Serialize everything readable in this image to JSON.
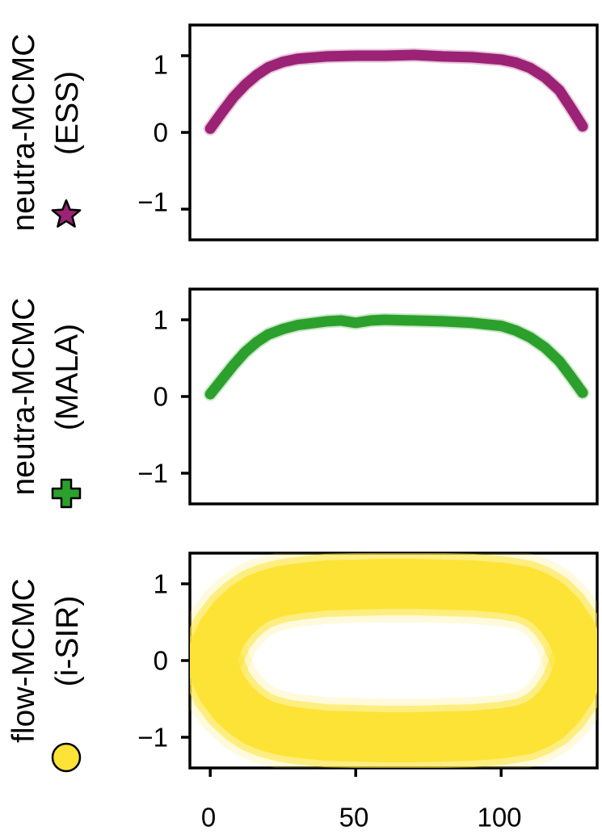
{
  "chart_data": [
    {
      "type": "line",
      "row_label_lines": [
        "neutra-MCMC",
        "(ESS)"
      ],
      "marker": "star",
      "color": "#9b2274",
      "x": [
        0,
        4,
        8,
        12,
        16,
        20,
        25,
        30,
        40,
        50,
        60,
        70,
        80,
        90,
        100,
        105,
        110,
        115,
        120,
        124,
        128
      ],
      "y": [
        0.05,
        0.26,
        0.46,
        0.62,
        0.75,
        0.85,
        0.92,
        0.96,
        0.99,
        1.0,
        1.0,
        1.01,
        0.99,
        0.98,
        0.95,
        0.91,
        0.84,
        0.72,
        0.55,
        0.32,
        0.08
      ],
      "ylim": [
        -1.4,
        1.4
      ],
      "yticks": [
        1,
        0,
        -1
      ],
      "ytick_labels": [
        "1",
        "0",
        "−1"
      ],
      "xlim": [
        -7,
        133
      ]
    },
    {
      "type": "line",
      "row_label_lines": [
        "neutra-MCMC",
        "(MALA)"
      ],
      "marker": "plus",
      "color": "#2ca02c",
      "x": [
        0,
        4,
        8,
        12,
        16,
        20,
        25,
        30,
        40,
        45,
        50,
        55,
        60,
        70,
        80,
        90,
        100,
        105,
        110,
        115,
        120,
        124,
        128
      ],
      "y": [
        0.03,
        0.22,
        0.41,
        0.58,
        0.71,
        0.81,
        0.88,
        0.93,
        0.98,
        0.99,
        0.96,
        0.99,
        1.0,
        0.99,
        0.98,
        0.96,
        0.92,
        0.86,
        0.77,
        0.64,
        0.46,
        0.26,
        0.05
      ],
      "ylim": [
        -1.4,
        1.4
      ],
      "yticks": [
        1,
        0,
        -1
      ],
      "ytick_labels": [
        "1",
        "0",
        "−1"
      ],
      "xlim": [
        -7,
        133
      ]
    },
    {
      "type": "scatter",
      "row_label_lines": [
        "flow-MCMC",
        "(i-SIR)"
      ],
      "marker": "circle",
      "color": "#fde335",
      "x": [
        0,
        4,
        8,
        12,
        16,
        20,
        25,
        30,
        40,
        50,
        60,
        70,
        80,
        90,
        100,
        108,
        112,
        116,
        120,
        124,
        128
      ],
      "y_upper": [
        0.0,
        0.36,
        0.56,
        0.7,
        0.8,
        0.86,
        0.91,
        0.94,
        0.98,
        0.99,
        1.0,
        1.0,
        0.99,
        0.98,
        0.95,
        0.9,
        0.84,
        0.75,
        0.6,
        0.38,
        0.0
      ],
      "y_lower": [
        0.0,
        -0.36,
        -0.56,
        -0.7,
        -0.8,
        -0.86,
        -0.91,
        -0.94,
        -0.98,
        -0.99,
        -1.0,
        -1.0,
        -0.99,
        -0.98,
        -0.95,
        -0.9,
        -0.84,
        -0.75,
        -0.6,
        -0.38,
        0.0
      ],
      "ylim": [
        -1.4,
        1.4
      ],
      "yticks": [
        1,
        0,
        -1
      ],
      "ytick_labels": [
        "1",
        "0",
        "−1"
      ],
      "xlim": [
        -7,
        133
      ],
      "xticks": [
        0,
        50,
        100
      ],
      "xtick_labels": [
        "0",
        "50",
        "100"
      ]
    }
  ]
}
